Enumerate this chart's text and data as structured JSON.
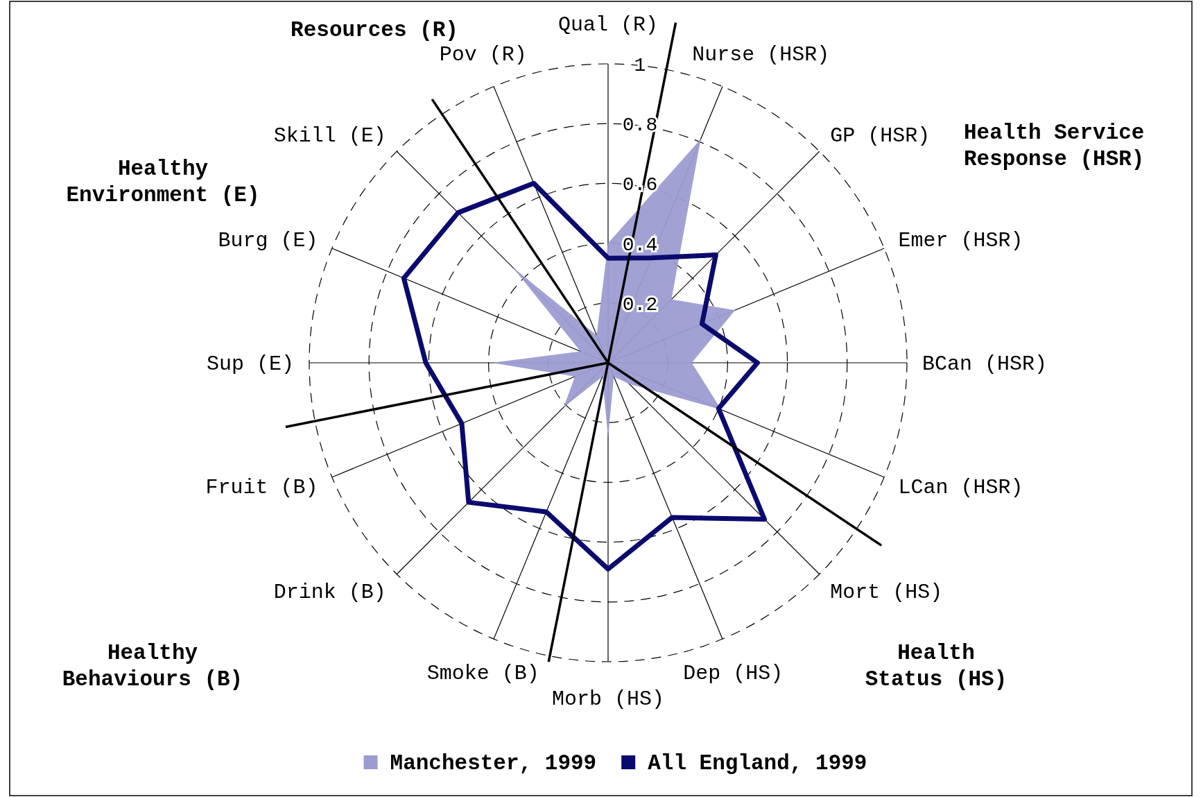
{
  "chart_data": {
    "type": "radar",
    "categories": [
      "Qual (R)",
      "Nurse (HSR)",
      "GP (HSR)",
      "Emer (HSR)",
      "BCan (HSR)",
      "LCan (HSR)",
      "Mort (HS)",
      "Dep (HS)",
      "Morb (HS)",
      "Smoke (B)",
      "Drink (B)",
      "Fruit (B)",
      "Sup (E)",
      "Burg (E)",
      "Skill (E)",
      "Pov (R)"
    ],
    "series": [
      {
        "name": "Manchester, 1999",
        "type": "area",
        "color": "#9c9cd2",
        "values": [
          0.4,
          0.81,
          0.3,
          0.46,
          0.28,
          0.41,
          0.1,
          0.05,
          0.25,
          0.05,
          0.21,
          0.12,
          0.39,
          0.1,
          0.45,
          0.1
        ]
      },
      {
        "name": "All England, 1999",
        "color": "#0a0a6e",
        "values": [
          0.35,
          0.38,
          0.51,
          0.34,
          0.5,
          0.4,
          0.74,
          0.56,
          0.69,
          0.54,
          0.66,
          0.53,
          0.61,
          0.74,
          0.71,
          0.65
        ]
      }
    ],
    "ylim": [
      0,
      1
    ],
    "yticks": [
      0.2,
      0.4,
      0.6,
      0.8,
      1
    ],
    "grid": true,
    "legend": "bottom",
    "annotations": [
      "Resources (R)",
      "Health Service Response (HSR)",
      "Health Status (HS)",
      "Healthy Behaviours (B)",
      "Healthy Environment (E)"
    ]
  }
}
